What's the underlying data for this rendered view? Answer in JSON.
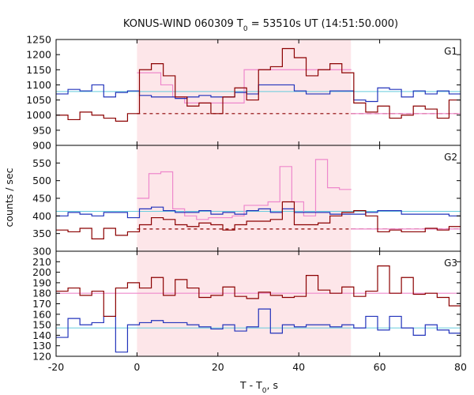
{
  "chart_data": {
    "type": "line",
    "title": "KONUS-WIND 060309 T",
    "title_sub": "0",
    "title_rest": " = 53510s UT (14:51:50.000)",
    "xlabel": "T - T",
    "xlabel_sub": "0",
    "xlabel_rest": ", s",
    "ylabel": "counts / sec",
    "xlim": [
      -20,
      80
    ],
    "x_ticks": [
      -20,
      0,
      20,
      40,
      60,
      80
    ],
    "highlight_interval": [
      0,
      52.9
    ],
    "colors": {
      "G1": "#8b0000",
      "G2": "#8b0000",
      "G3": "#8b0000",
      "blue": "#2233bb",
      "pink": "#ee88cc",
      "cyan": "#66ccdd",
      "highlight": "#fde6e9"
    },
    "panels": [
      {
        "name": "G1",
        "ylim": [
          900,
          1250
        ],
        "y_ticks": [
          900,
          950,
          1000,
          1050,
          1100,
          1150,
          1200,
          1250
        ],
        "red_bg_level": 1005,
        "blue_bg_level": 1078,
        "series": [
          {
            "color_key": "G1",
            "x_start": -20,
            "bin": 2.944,
            "values": [
              1000,
              985,
              1010,
              1000,
              990,
              980,
              1005,
              1150,
              1170,
              1130,
              1060,
              1030,
              1040,
              1005,
              1060,
              1090,
              1050,
              1150,
              1160,
              1220,
              1190,
              1130,
              1150,
              1170,
              1140,
              1040,
              1010,
              1030,
              990,
              1000,
              1030,
              1020,
              990,
              1050,
              1030
            ]
          },
          {
            "color_key": "blue",
            "x_start": -20,
            "bin": 2.944,
            "values": [
              1070,
              1085,
              1080,
              1100,
              1060,
              1075,
              1080,
              1065,
              1060,
              1060,
              1055,
              1060,
              1065,
              1060,
              1060,
              1075,
              1070,
              1100,
              1100,
              1100,
              1080,
              1070,
              1070,
              1080,
              1080,
              1050,
              1045,
              1090,
              1085,
              1060,
              1080,
              1070,
              1080,
              1070,
              1085
            ]
          },
          {
            "color_key": "pink",
            "x_start": 0,
            "bin": 2.944,
            "values": [
              1140,
              1140,
              1100,
              1060,
              1040,
              1040,
              1040,
              1040,
              1040,
              1150,
              1150,
              1150,
              1150,
              1150,
              1150,
              1150,
              1150,
              1150
            ]
          },
          {
            "color_key": "pink",
            "x_start": 52.9,
            "x_end": 80,
            "flat": 1005
          }
        ]
      },
      {
        "name": "G2",
        "ylim": [
          300,
          600
        ],
        "y_ticks": [
          300,
          350,
          400,
          450,
          500,
          550
        ],
        "red_bg_level": 363,
        "blue_bg_level": 413,
        "series": [
          {
            "color_key": "G2",
            "x_start": -20,
            "bin": 2.944,
            "values": [
              360,
              355,
              365,
              335,
              365,
              345,
              355,
              375,
              395,
              390,
              375,
              370,
              380,
              375,
              360,
              375,
              385,
              385,
              390,
              440,
              375,
              375,
              380,
              400,
              410,
              415,
              400,
              355,
              360,
              355,
              355,
              365,
              360,
              370,
              360
            ]
          },
          {
            "color_key": "blue",
            "x_start": -20,
            "bin": 2.944,
            "values": [
              400,
              410,
              405,
              400,
              410,
              410,
              395,
              420,
              425,
              415,
              410,
              410,
              415,
              405,
              410,
              405,
              415,
              420,
              410,
              420,
              410,
              410,
              410,
              405,
              405,
              405,
              410,
              415,
              415,
              405,
              405,
              405,
              405,
              400,
              420
            ]
          },
          {
            "color_key": "pink",
            "x_start": 0,
            "bin": 2.944,
            "values": [
              450,
              520,
              525,
              420,
              400,
              390,
              395,
              395,
              400,
              430,
              430,
              440,
              540,
              440,
              400,
              560,
              480,
              475
            ]
          },
          {
            "color_key": "pink",
            "x_start": 52.9,
            "x_end": 80,
            "flat": 363
          }
        ]
      },
      {
        "name": "G3",
        "ylim": [
          120,
          220
        ],
        "y_ticks": [
          120,
          130,
          140,
          150,
          160,
          170,
          180,
          190,
          200,
          210
        ],
        "red_bg_level": 180,
        "blue_bg_level": 147,
        "series": [
          {
            "color_key": "G3",
            "x_start": -20,
            "bin": 2.944,
            "values": [
              182,
              185,
              178,
              182,
              158,
              185,
              190,
              185,
              195,
              178,
              193,
              185,
              176,
              178,
              186,
              177,
              175,
              181,
              178,
              176,
              177,
              197,
              183,
              180,
              186,
              177,
              182,
              206,
              180,
              195,
              179,
              180,
              176,
              168,
              172,
              182,
              179
            ]
          },
          {
            "color_key": "blue",
            "x_start": -20,
            "bin": 2.944,
            "values": [
              138,
              156,
              150,
              152,
              158,
              124,
              150,
              152,
              154,
              152,
              152,
              150,
              148,
              146,
              150,
              144,
              148,
              165,
              142,
              150,
              148,
              150,
              150,
              148,
              150,
              147,
              158,
              145,
              158,
              147,
              140,
              150,
              145,
              142,
              155,
              145,
              138
            ]
          },
          {
            "color_key": "pink",
            "x_start": -20,
            "x_end": 80,
            "flat": 180
          }
        ]
      }
    ]
  }
}
